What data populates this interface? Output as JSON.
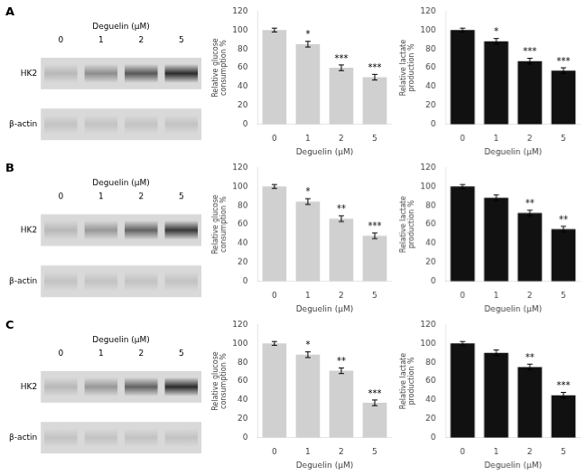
{
  "chart_data": [
    {
      "type": "heatmap",
      "title": "A",
      "x_label": "Deguelin (μM)",
      "categories": [
        "0",
        "1",
        "2",
        "5"
      ],
      "rows": [
        "HK2",
        "β-actin"
      ],
      "cells": [
        [
          0.15,
          0.35,
          0.6,
          0.8
        ],
        [
          0.1,
          0.1,
          0.1,
          0.1
        ]
      ]
    },
    {
      "type": "bar",
      "categories": [
        "0",
        "1",
        "2",
        "5"
      ],
      "values": [
        100,
        85,
        60,
        50
      ],
      "errors": [
        2,
        3,
        3,
        3
      ],
      "color": "#d0d0d0",
      "x_label": "Deguelin (μM)",
      "y_label": "Relative glucose\nconsumption %",
      "ylim": [
        0,
        120
      ],
      "yticks": [
        0,
        20,
        40,
        60,
        80,
        100,
        120
      ],
      "grid": false,
      "annotations": [
        {
          "category": "1",
          "text": "*"
        },
        {
          "category": "2",
          "text": "***"
        },
        {
          "category": "5",
          "text": "***"
        }
      ]
    },
    {
      "type": "bar",
      "categories": [
        "0",
        "1",
        "2",
        "5"
      ],
      "values": [
        100,
        88,
        67,
        57
      ],
      "errors": [
        2,
        3,
        3,
        3
      ],
      "color": "#111111",
      "x_label": "Deguelin (μM)",
      "y_label": "Relative lactate\nproduction %",
      "ylim": [
        0,
        120
      ],
      "yticks": [
        0,
        20,
        40,
        60,
        80,
        100,
        120
      ],
      "grid": false,
      "annotations": [
        {
          "category": "1",
          "text": "*"
        },
        {
          "category": "2",
          "text": "***"
        },
        {
          "category": "5",
          "text": "***"
        }
      ]
    },
    {
      "type": "heatmap",
      "title": "B",
      "x_label": "Deguelin (μM)",
      "categories": [
        "0",
        "1",
        "2",
        "5"
      ],
      "rows": [
        "HK2",
        "β-actin"
      ],
      "cells": [
        [
          0.15,
          0.3,
          0.55,
          0.75
        ],
        [
          0.1,
          0.1,
          0.1,
          0.1
        ]
      ]
    },
    {
      "type": "bar",
      "categories": [
        "0",
        "1",
        "2",
        "5"
      ],
      "values": [
        100,
        84,
        66,
        48
      ],
      "errors": [
        2,
        3,
        3,
        3
      ],
      "color": "#d0d0d0",
      "x_label": "Deguelin (μM)",
      "y_label": "Relative glucose\nconsumption %",
      "ylim": [
        0,
        120
      ],
      "yticks": [
        0,
        20,
        40,
        60,
        80,
        100,
        120
      ],
      "grid": false,
      "annotations": [
        {
          "category": "1",
          "text": "*"
        },
        {
          "category": "2",
          "text": "**"
        },
        {
          "category": "5",
          "text": "***"
        }
      ]
    },
    {
      "type": "bar",
      "categories": [
        "0",
        "1",
        "2",
        "5"
      ],
      "values": [
        100,
        88,
        72,
        55
      ],
      "errors": [
        2,
        3,
        3,
        3
      ],
      "color": "#111111",
      "x_label": "Deguelin (μM)",
      "y_label": "Relative lactate\nproduction %",
      "ylim": [
        0,
        120
      ],
      "yticks": [
        0,
        20,
        40,
        60,
        80,
        100,
        120
      ],
      "grid": false,
      "annotations": [
        {
          "category": "2",
          "text": "**"
        },
        {
          "category": "5",
          "text": "**"
        }
      ]
    },
    {
      "type": "heatmap",
      "title": "C",
      "x_label": "Deguelin (μM)",
      "categories": [
        "0",
        "1",
        "2",
        "5"
      ],
      "rows": [
        "HK2",
        "β-actin"
      ],
      "cells": [
        [
          0.15,
          0.3,
          0.55,
          0.8
        ],
        [
          0.1,
          0.1,
          0.1,
          0.1
        ]
      ]
    },
    {
      "type": "bar",
      "categories": [
        "0",
        "1",
        "2",
        "5"
      ],
      "values": [
        100,
        88,
        71,
        37
      ],
      "errors": [
        2,
        3,
        3,
        3
      ],
      "color": "#d0d0d0",
      "x_label": "Deguelin (μM)",
      "y_label": "Relative glucose\nconsumption %",
      "ylim": [
        0,
        120
      ],
      "yticks": [
        0,
        20,
        40,
        60,
        80,
        100,
        120
      ],
      "grid": false,
      "annotations": [
        {
          "category": "1",
          "text": "*"
        },
        {
          "category": "2",
          "text": "**"
        },
        {
          "category": "5",
          "text": "***"
        }
      ]
    },
    {
      "type": "bar",
      "categories": [
        "0",
        "1",
        "2",
        "5"
      ],
      "values": [
        100,
        90,
        75,
        45
      ],
      "errors": [
        2,
        3,
        3,
        3
      ],
      "color": "#111111",
      "x_label": "Deguelin (μM)",
      "y_label": "Relative lactate\nproduction %",
      "ylim": [
        0,
        120
      ],
      "yticks": [
        0,
        20,
        40,
        60,
        80,
        100,
        120
      ],
      "grid": false,
      "annotations": [
        {
          "category": "2",
          "text": "**"
        },
        {
          "category": "5",
          "text": "***"
        }
      ]
    }
  ]
}
